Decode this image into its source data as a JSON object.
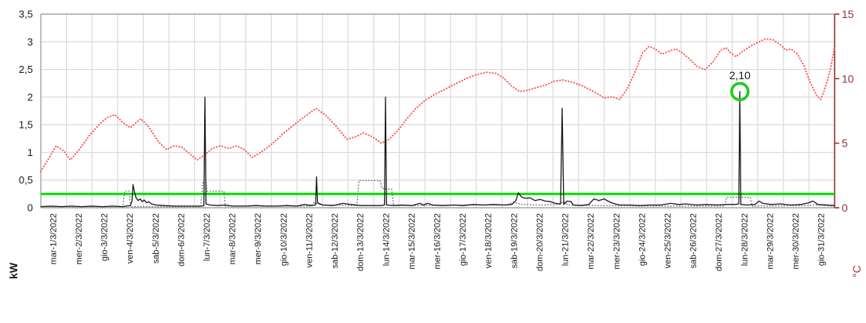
{
  "chart_data": {
    "type": "line",
    "description": "Daily power consumption (kW, left axis) vs outdoor temperature (°C, right axis) for March 2022, with a 0.25 kW threshold line and a highlighted peak of 2,10 kW on lun-28/3/2022",
    "grid": true,
    "legend": "none",
    "x_axis": {
      "labels": [
        "mar-1/3/2022",
        "mer-2/3/2022",
        "gio-3/3/2022",
        "ven-4/3/2022",
        "sab-5/3/2022",
        "dom-6/3/2022",
        "lun-7/3/2022",
        "mar-8/3/2022",
        "mer-9/3/2022",
        "gio-10/3/2022",
        "ven-11/3/2022",
        "sab-12/3/2022",
        "dom-13/3/2022",
        "lun-14/3/2022",
        "mar-15/3/2022",
        "mer-16/3/2022",
        "gio-17/3/2022",
        "ven-18/3/2022",
        "sab-19/3/2022",
        "dom-20/3/2022",
        "lun-21/3/2022",
        "mar-22/3/2022",
        "mer-23/3/2022",
        "gio-24/3/2022",
        "ven-25/3/2022",
        "sab-26/3/2022",
        "dom-27/3/2022",
        "lun-28/3/2022",
        "mar-29/3/2022",
        "mer-30/3/2022",
        "gio-31/3/2022"
      ],
      "slots": 31
    },
    "y_left": {
      "label": "kW",
      "min": 0,
      "max": 3.5,
      "tick_values": [
        0,
        0.5,
        1,
        1.5,
        2,
        2.5,
        3,
        3.5
      ],
      "tick_labels": [
        "0",
        "0,5",
        "1",
        "1,5",
        "2",
        "2,5",
        "3",
        "3,5"
      ],
      "color": "#1a1a1a"
    },
    "y_right": {
      "label": "°C",
      "min": 0,
      "max": 15,
      "tick_values": [
        0,
        5,
        10,
        15
      ],
      "tick_labels": [
        "0",
        "5",
        "10",
        "15"
      ],
      "color": "#943634"
    },
    "threshold_line": {
      "axis": "left",
      "value": 0.25,
      "color": "#00E400"
    },
    "highlight": {
      "series": "power_kw",
      "day": 27.3,
      "value": 2.1,
      "label": "2,10",
      "marker_color": "#22CC22"
    },
    "series": [
      {
        "name": "power_kw_reference_dotted",
        "axis": "left",
        "style": "dotted",
        "color": "#808080",
        "points": [
          [
            0,
            0.02
          ],
          [
            3.2,
            0.02
          ],
          [
            3.28,
            0.3
          ],
          [
            3.45,
            0.3
          ],
          [
            3.5,
            0.02
          ],
          [
            6.25,
            0.02
          ],
          [
            6.32,
            0.45
          ],
          [
            6.45,
            0.45
          ],
          [
            6.5,
            0.3
          ],
          [
            7.15,
            0.3
          ],
          [
            7.2,
            0.03
          ],
          [
            10.55,
            0.03
          ],
          [
            10.65,
            0.09
          ],
          [
            11.05,
            0.05
          ],
          [
            12.35,
            0.04
          ],
          [
            12.42,
            0.49
          ],
          [
            13.25,
            0.49
          ],
          [
            13.32,
            0.35
          ],
          [
            13.7,
            0.33
          ],
          [
            13.78,
            0.04
          ],
          [
            15.2,
            0.04
          ],
          [
            16.5,
            0.05
          ],
          [
            18.2,
            0.05
          ],
          [
            18.45,
            0.1
          ],
          [
            18.8,
            0.06
          ],
          [
            19.6,
            0.05
          ],
          [
            20.25,
            0.06
          ],
          [
            20.4,
            0.11
          ],
          [
            20.6,
            0.05
          ],
          [
            21.8,
            0.04
          ],
          [
            24.0,
            0.03
          ],
          [
            26.7,
            0.03
          ],
          [
            26.78,
            0.19
          ],
          [
            27.7,
            0.19
          ],
          [
            27.78,
            0.03
          ],
          [
            29.9,
            0.04
          ],
          [
            30.2,
            0.05
          ],
          [
            31,
            0.03
          ]
        ]
      },
      {
        "name": "temperature_c",
        "axis": "right",
        "style": "dotted",
        "color": "#FF5555",
        "points": [
          [
            0,
            2.8
          ],
          [
            0.3,
            3.8
          ],
          [
            0.6,
            4.8
          ],
          [
            0.9,
            4.4
          ],
          [
            1.15,
            3.7
          ],
          [
            1.5,
            4.5
          ],
          [
            1.9,
            5.6
          ],
          [
            2.3,
            6.5
          ],
          [
            2.6,
            7.0
          ],
          [
            2.9,
            7.2
          ],
          [
            3.2,
            6.6
          ],
          [
            3.5,
            6.2
          ],
          [
            3.9,
            6.9
          ],
          [
            4.2,
            6.3
          ],
          [
            4.6,
            5.1
          ],
          [
            4.9,
            4.5
          ],
          [
            5.2,
            4.8
          ],
          [
            5.5,
            4.7
          ],
          [
            5.8,
            4.2
          ],
          [
            6.1,
            3.7
          ],
          [
            6.4,
            4.1
          ],
          [
            6.7,
            4.6
          ],
          [
            7.0,
            4.8
          ],
          [
            7.35,
            4.6
          ],
          [
            7.65,
            4.8
          ],
          [
            7.95,
            4.5
          ],
          [
            8.25,
            3.9
          ],
          [
            8.6,
            4.3
          ],
          [
            9.0,
            4.9
          ],
          [
            9.5,
            5.8
          ],
          [
            10.0,
            6.6
          ],
          [
            10.4,
            7.2
          ],
          [
            10.75,
            7.7
          ],
          [
            11.1,
            7.2
          ],
          [
            11.5,
            6.4
          ],
          [
            11.95,
            5.3
          ],
          [
            12.3,
            5.5
          ],
          [
            12.6,
            5.8
          ],
          [
            12.95,
            5.5
          ],
          [
            13.3,
            5.0
          ],
          [
            13.6,
            5.3
          ],
          [
            13.95,
            6.0
          ],
          [
            14.3,
            6.9
          ],
          [
            14.65,
            7.7
          ],
          [
            15.0,
            8.3
          ],
          [
            15.4,
            8.8
          ],
          [
            15.8,
            9.2
          ],
          [
            16.2,
            9.6
          ],
          [
            16.6,
            10.0
          ],
          [
            17.0,
            10.3
          ],
          [
            17.4,
            10.5
          ],
          [
            17.8,
            10.4
          ],
          [
            18.1,
            10.0
          ],
          [
            18.4,
            9.4
          ],
          [
            18.7,
            9.0
          ],
          [
            19.0,
            9.1
          ],
          [
            19.35,
            9.3
          ],
          [
            19.7,
            9.5
          ],
          [
            20.05,
            9.8
          ],
          [
            20.4,
            9.9
          ],
          [
            20.8,
            9.7
          ],
          [
            21.2,
            9.4
          ],
          [
            21.6,
            9.0
          ],
          [
            22.0,
            8.5
          ],
          [
            22.3,
            8.6
          ],
          [
            22.6,
            8.4
          ],
          [
            22.9,
            9.2
          ],
          [
            23.2,
            10.5
          ],
          [
            23.5,
            12.0
          ],
          [
            23.75,
            12.5
          ],
          [
            24.0,
            12.3
          ],
          [
            24.25,
            11.9
          ],
          [
            24.5,
            12.1
          ],
          [
            24.8,
            12.3
          ],
          [
            25.05,
            12.0
          ],
          [
            25.35,
            11.5
          ],
          [
            25.65,
            10.9
          ],
          [
            25.95,
            10.7
          ],
          [
            26.25,
            11.3
          ],
          [
            26.55,
            12.2
          ],
          [
            26.75,
            12.4
          ],
          [
            26.95,
            12.0
          ],
          [
            27.15,
            11.7
          ],
          [
            27.4,
            12.1
          ],
          [
            27.7,
            12.5
          ],
          [
            28.0,
            12.8
          ],
          [
            28.3,
            13.1
          ],
          [
            28.6,
            13.0
          ],
          [
            28.9,
            12.6
          ],
          [
            29.1,
            12.2
          ],
          [
            29.3,
            12.3
          ],
          [
            29.55,
            11.9
          ],
          [
            29.8,
            11.0
          ],
          [
            30.05,
            9.7
          ],
          [
            30.3,
            8.7
          ],
          [
            30.45,
            8.4
          ],
          [
            30.6,
            9.1
          ],
          [
            30.8,
            10.4
          ],
          [
            30.95,
            11.9
          ],
          [
            31,
            12.5
          ]
        ]
      },
      {
        "name": "power_kw",
        "axis": "left",
        "style": "solid",
        "color": "#1a1a1a",
        "points": [
          [
            0,
            0.02
          ],
          [
            0.4,
            0.03
          ],
          [
            0.8,
            0.02
          ],
          [
            1.2,
            0.03
          ],
          [
            1.6,
            0.02
          ],
          [
            2.0,
            0.03
          ],
          [
            2.4,
            0.02
          ],
          [
            2.8,
            0.03
          ],
          [
            3.2,
            0.02
          ],
          [
            3.5,
            0.04
          ],
          [
            3.56,
            0.12
          ],
          [
            3.6,
            0.42
          ],
          [
            3.66,
            0.28
          ],
          [
            3.72,
            0.18
          ],
          [
            3.8,
            0.13
          ],
          [
            3.88,
            0.16
          ],
          [
            3.96,
            0.11
          ],
          [
            4.04,
            0.14
          ],
          [
            4.12,
            0.09
          ],
          [
            4.22,
            0.11
          ],
          [
            4.32,
            0.07
          ],
          [
            4.5,
            0.05
          ],
          [
            4.8,
            0.04
          ],
          [
            5.2,
            0.03
          ],
          [
            5.6,
            0.03
          ],
          [
            6.0,
            0.03
          ],
          [
            6.3,
            0.03
          ],
          [
            6.37,
            0.04
          ],
          [
            6.41,
            2.0
          ],
          [
            6.45,
            0.07
          ],
          [
            6.6,
            0.05
          ],
          [
            6.9,
            0.04
          ],
          [
            7.2,
            0.05
          ],
          [
            7.5,
            0.03
          ],
          [
            8.0,
            0.03
          ],
          [
            8.4,
            0.04
          ],
          [
            8.8,
            0.03
          ],
          [
            9.2,
            0.03
          ],
          [
            9.6,
            0.04
          ],
          [
            10.0,
            0.03
          ],
          [
            10.3,
            0.06
          ],
          [
            10.55,
            0.04
          ],
          [
            10.73,
            0.05
          ],
          [
            10.77,
            0.56
          ],
          [
            10.81,
            0.09
          ],
          [
            11.0,
            0.05
          ],
          [
            11.4,
            0.04
          ],
          [
            11.8,
            0.08
          ],
          [
            12.1,
            0.06
          ],
          [
            12.5,
            0.04
          ],
          [
            12.9,
            0.04
          ],
          [
            13.3,
            0.04
          ],
          [
            13.42,
            0.05
          ],
          [
            13.46,
            2.0
          ],
          [
            13.5,
            0.05
          ],
          [
            13.8,
            0.04
          ],
          [
            14.1,
            0.05
          ],
          [
            14.5,
            0.04
          ],
          [
            14.8,
            0.08
          ],
          [
            14.95,
            0.05
          ],
          [
            15.1,
            0.08
          ],
          [
            15.3,
            0.05
          ],
          [
            15.7,
            0.04
          ],
          [
            16.1,
            0.05
          ],
          [
            16.5,
            0.04
          ],
          [
            16.9,
            0.06
          ],
          [
            17.3,
            0.05
          ],
          [
            17.7,
            0.06
          ],
          [
            18.1,
            0.05
          ],
          [
            18.4,
            0.06
          ],
          [
            18.55,
            0.13
          ],
          [
            18.65,
            0.27
          ],
          [
            18.78,
            0.19
          ],
          [
            18.95,
            0.17
          ],
          [
            19.1,
            0.18
          ],
          [
            19.3,
            0.13
          ],
          [
            19.5,
            0.15
          ],
          [
            19.7,
            0.12
          ],
          [
            19.9,
            0.11
          ],
          [
            20.1,
            0.08
          ],
          [
            20.3,
            0.07
          ],
          [
            20.36,
            1.8
          ],
          [
            20.42,
            0.06
          ],
          [
            20.55,
            0.12
          ],
          [
            20.7,
            0.11
          ],
          [
            20.8,
            0.05
          ],
          [
            21.1,
            0.04
          ],
          [
            21.4,
            0.06
          ],
          [
            21.6,
            0.16
          ],
          [
            21.8,
            0.13
          ],
          [
            22.0,
            0.16
          ],
          [
            22.15,
            0.12
          ],
          [
            22.35,
            0.08
          ],
          [
            22.6,
            0.05
          ],
          [
            23.0,
            0.05
          ],
          [
            23.4,
            0.04
          ],
          [
            23.8,
            0.05
          ],
          [
            24.2,
            0.05
          ],
          [
            24.6,
            0.08
          ],
          [
            24.9,
            0.06
          ],
          [
            25.2,
            0.07
          ],
          [
            25.6,
            0.05
          ],
          [
            26.0,
            0.06
          ],
          [
            26.4,
            0.05
          ],
          [
            26.8,
            0.06
          ],
          [
            27.1,
            0.06
          ],
          [
            27.26,
            0.07
          ],
          [
            27.3,
            2.1
          ],
          [
            27.34,
            0.06
          ],
          [
            27.6,
            0.05
          ],
          [
            27.9,
            0.06
          ],
          [
            28.05,
            0.12
          ],
          [
            28.2,
            0.08
          ],
          [
            28.5,
            0.06
          ],
          [
            28.9,
            0.07
          ],
          [
            29.3,
            0.05
          ],
          [
            29.7,
            0.06
          ],
          [
            30.0,
            0.09
          ],
          [
            30.15,
            0.12
          ],
          [
            30.35,
            0.06
          ],
          [
            30.7,
            0.05
          ],
          [
            31,
            0.04
          ]
        ]
      }
    ],
    "style": {
      "grid_color": "#DADADA",
      "border_color": "#A6A6A6",
      "right_axis_color": "#943634",
      "background": "#ffffff",
      "annotation_text_color": "#1a1a1a"
    }
  }
}
